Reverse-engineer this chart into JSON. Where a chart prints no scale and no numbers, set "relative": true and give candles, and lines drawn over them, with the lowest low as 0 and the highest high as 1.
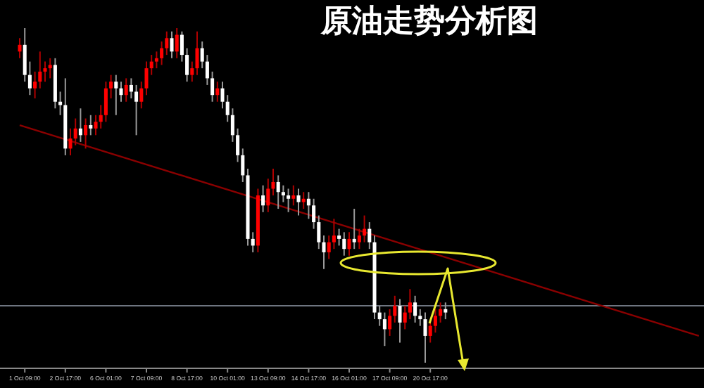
{
  "chart_data": {
    "type": "candlestick",
    "title": "原油走势分析图",
    "relative": true,
    "categories": [
      null,
      "1 Oct 09:00",
      null,
      null,
      null,
      null,
      null,
      null,
      null,
      "2 Oct 17:00",
      null,
      null,
      null,
      null,
      null,
      null,
      null,
      "6 Oct 01:00",
      null,
      null,
      null,
      null,
      null,
      null,
      null,
      "7 Oct 09:00",
      null,
      null,
      null,
      null,
      null,
      null,
      null,
      "8 Oct 17:00",
      null,
      null,
      null,
      null,
      null,
      null,
      null,
      "10 Oct 01:00",
      null,
      null,
      null,
      null,
      null,
      null,
      null,
      "13 Oct 09:00",
      null,
      null,
      null,
      null,
      null,
      null,
      null,
      "14 Oct 17:00",
      null,
      null,
      null,
      null,
      null,
      null,
      null,
      "16 Oct 01:00",
      null,
      null,
      null,
      null,
      null,
      null,
      null,
      "17 Oct 09:00",
      null,
      null,
      null,
      null,
      null,
      null,
      null,
      "20 Oct 17:00",
      null,
      null,
      null,
      null,
      null,
      null,
      null,
      null,
      null,
      null,
      null,
      null,
      null,
      null,
      null,
      null,
      null,
      null,
      null,
      null,
      null,
      null,
      null,
      null,
      null,
      null,
      null,
      null,
      null,
      null,
      null,
      null,
      null,
      null,
      null,
      null,
      null,
      null,
      null,
      null,
      null,
      null,
      null,
      null,
      null,
      null,
      null,
      null,
      null,
      null,
      null,
      null,
      null
    ],
    "ohlc": [
      [
        0.93,
        0.97,
        0.91,
        0.95
      ],
      [
        0.95,
        1.0,
        0.84,
        0.86
      ],
      [
        0.86,
        0.9,
        0.8,
        0.82
      ],
      [
        0.82,
        0.87,
        0.79,
        0.84
      ],
      [
        0.84,
        0.93,
        0.82,
        0.87
      ],
      [
        0.87,
        0.9,
        0.84,
        0.88
      ],
      [
        0.88,
        0.91,
        0.85,
        0.89
      ],
      [
        0.89,
        0.91,
        0.76,
        0.78
      ],
      [
        0.78,
        0.81,
        0.74,
        0.77
      ],
      [
        0.77,
        0.85,
        0.62,
        0.64
      ],
      [
        0.64,
        0.7,
        0.62,
        0.67
      ],
      [
        0.67,
        0.73,
        0.65,
        0.7
      ],
      [
        0.7,
        0.76,
        0.66,
        0.68
      ],
      [
        0.68,
        0.73,
        0.64,
        0.71
      ],
      [
        0.71,
        0.74,
        0.68,
        0.7
      ],
      [
        0.7,
        0.74,
        0.68,
        0.72
      ],
      [
        0.72,
        0.77,
        0.7,
        0.74
      ],
      [
        0.74,
        0.84,
        0.72,
        0.82
      ],
      [
        0.82,
        0.86,
        0.79,
        0.84
      ],
      [
        0.84,
        0.86,
        0.74,
        0.82
      ],
      [
        0.82,
        0.84,
        0.78,
        0.8
      ],
      [
        0.8,
        0.85,
        0.78,
        0.83
      ],
      [
        0.83,
        0.85,
        0.79,
        0.81
      ],
      [
        0.81,
        0.83,
        0.68,
        0.78
      ],
      [
        0.78,
        0.84,
        0.76,
        0.82
      ],
      [
        0.82,
        0.9,
        0.8,
        0.88
      ],
      [
        0.88,
        0.92,
        0.86,
        0.9
      ],
      [
        0.9,
        0.93,
        0.88,
        0.91
      ],
      [
        0.91,
        0.96,
        0.89,
        0.94
      ],
      [
        0.94,
        0.99,
        0.92,
        0.97
      ],
      [
        0.97,
        0.99,
        0.91,
        0.93
      ],
      [
        0.93,
        1.0,
        0.91,
        0.98
      ],
      [
        0.98,
        0.99,
        0.9,
        0.92
      ],
      [
        0.92,
        0.94,
        0.84,
        0.86
      ],
      [
        0.86,
        0.9,
        0.84,
        0.88
      ],
      [
        0.88,
        0.99,
        0.86,
        0.94
      ],
      [
        0.94,
        0.96,
        0.88,
        0.9
      ],
      [
        0.9,
        0.92,
        0.83,
        0.85
      ],
      [
        0.85,
        0.87,
        0.78,
        0.8
      ],
      [
        0.8,
        0.84,
        0.78,
        0.82
      ],
      [
        0.82,
        0.84,
        0.76,
        0.78
      ],
      [
        0.78,
        0.8,
        0.72,
        0.74
      ],
      [
        0.74,
        0.76,
        0.66,
        0.68
      ],
      [
        0.68,
        0.7,
        0.6,
        0.62
      ],
      [
        0.62,
        0.64,
        0.54,
        0.56
      ],
      [
        0.56,
        0.58,
        0.35,
        0.37
      ],
      [
        0.37,
        0.39,
        0.33,
        0.35
      ],
      [
        0.35,
        0.52,
        0.33,
        0.5
      ],
      [
        0.5,
        0.53,
        0.45,
        0.47
      ],
      [
        0.47,
        0.55,
        0.45,
        0.52
      ],
      [
        0.52,
        0.58,
        0.5,
        0.54
      ],
      [
        0.54,
        0.56,
        0.46,
        0.51
      ],
      [
        0.51,
        0.53,
        0.48,
        0.5
      ],
      [
        0.5,
        0.52,
        0.45,
        0.49
      ],
      [
        0.49,
        0.53,
        0.47,
        0.5
      ],
      [
        0.5,
        0.52,
        0.44,
        0.48
      ],
      [
        0.48,
        0.51,
        0.46,
        0.49
      ],
      [
        0.49,
        0.51,
        0.43,
        0.47
      ],
      [
        0.47,
        0.49,
        0.4,
        0.42
      ],
      [
        0.42,
        0.44,
        0.34,
        0.36
      ],
      [
        0.36,
        0.38,
        0.28,
        0.33
      ],
      [
        0.33,
        0.38,
        0.31,
        0.36
      ],
      [
        0.36,
        0.43,
        0.34,
        0.38
      ],
      [
        0.38,
        0.4,
        0.35,
        0.37
      ],
      [
        0.37,
        0.39,
        0.32,
        0.34
      ],
      [
        0.34,
        0.39,
        0.32,
        0.37
      ],
      [
        0.37,
        0.46,
        0.34,
        0.36
      ],
      [
        0.36,
        0.4,
        0.34,
        0.38
      ],
      [
        0.38,
        0.44,
        0.36,
        0.4
      ],
      [
        0.4,
        0.42,
        0.34,
        0.36
      ],
      [
        0.36,
        0.38,
        0.13,
        0.15
      ],
      [
        0.15,
        0.17,
        0.11,
        0.13
      ],
      [
        0.13,
        0.15,
        0.05,
        0.1
      ],
      [
        0.1,
        0.16,
        0.08,
        0.14
      ],
      [
        0.14,
        0.2,
        0.12,
        0.17
      ],
      [
        0.17,
        0.19,
        0.06,
        0.12
      ],
      [
        0.12,
        0.17,
        0.1,
        0.15
      ],
      [
        0.15,
        0.22,
        0.13,
        0.18
      ],
      [
        0.18,
        0.2,
        0.12,
        0.14
      ],
      [
        0.14,
        0.16,
        0.11,
        0.13
      ],
      [
        0.13,
        0.15,
        0.0,
        0.08
      ],
      [
        0.08,
        0.13,
        0.06,
        0.11
      ],
      [
        0.11,
        0.16,
        0.09,
        0.14
      ],
      [
        0.14,
        0.18,
        0.12,
        0.16
      ],
      [
        0.16,
        0.18,
        0.13,
        0.15
      ],
      null,
      null,
      null,
      null,
      null,
      null,
      null,
      null,
      null,
      null,
      null,
      null,
      null,
      null,
      null,
      null,
      null,
      null,
      null,
      null,
      null,
      null,
      null,
      null,
      null,
      null,
      null,
      null,
      null,
      null,
      null,
      null,
      null,
      null,
      null,
      null,
      null,
      null,
      null,
      null,
      null,
      null,
      null,
      null,
      null,
      null,
      null,
      null,
      null,
      null
    ],
    "series": [
      {
        "type": "line",
        "color": "#8b0000",
        "values": [
          0.71,
          null,
          null,
          null,
          null,
          null,
          null,
          null,
          null,
          null,
          null,
          null,
          null,
          null,
          null,
          null,
          null,
          null,
          null,
          null,
          null,
          null,
          null,
          null,
          null,
          null,
          null,
          null,
          null,
          null,
          null,
          null,
          null,
          null,
          null,
          null,
          null,
          null,
          null,
          null,
          null,
          null,
          null,
          null,
          null,
          null,
          null,
          null,
          null,
          null,
          null,
          null,
          null,
          null,
          null,
          null,
          null,
          null,
          null,
          null,
          null,
          null,
          null,
          null,
          null,
          null,
          null,
          null,
          null,
          null,
          null,
          null,
          null,
          null,
          null,
          null,
          null,
          null,
          null,
          null,
          null,
          null,
          null,
          null,
          null,
          null,
          null,
          null,
          null,
          null,
          null,
          null,
          null,
          null,
          null,
          null,
          null,
          null,
          null,
          null,
          null,
          null,
          null,
          null,
          null,
          null,
          null,
          null,
          null,
          null,
          null,
          null,
          null,
          null,
          null,
          null,
          null,
          null,
          null,
          null,
          null,
          null,
          null,
          null,
          null,
          null,
          null,
          null,
          null,
          null,
          null,
          null,
          null,
          null,
          0.08
        ]
      }
    ],
    "ref_lines": [
      {
        "axis": "y",
        "value": 0.17,
        "color": "#6e7580"
      }
    ]
  }
}
